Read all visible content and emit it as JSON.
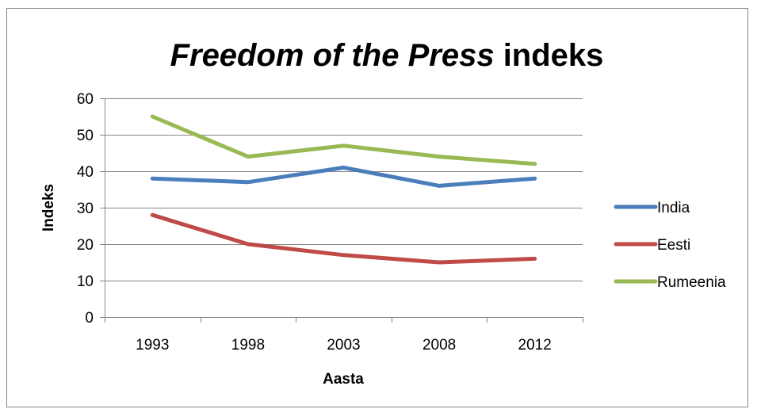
{
  "chart_data": {
    "type": "line",
    "title_italic": "Freedom of the Press",
    "title_rest": " indeks",
    "xlabel": "Aasta",
    "ylabel": "Indeks",
    "categories": [
      "1993",
      "1998",
      "2003",
      "2008",
      "2012"
    ],
    "ylim": [
      0,
      60
    ],
    "yticks": [
      0,
      10,
      20,
      30,
      40,
      50,
      60
    ],
    "grid": true,
    "legend_position": "right",
    "series": [
      {
        "name": "India",
        "color": "#4a7ebb",
        "values": [
          38,
          37,
          41,
          36,
          38
        ]
      },
      {
        "name": "Eesti",
        "color": "#be4b48",
        "values": [
          28,
          20,
          17,
          15,
          16
        ]
      },
      {
        "name": "Rumeenia",
        "color": "#98b954",
        "values": [
          55,
          44,
          47,
          44,
          42
        ]
      }
    ]
  }
}
